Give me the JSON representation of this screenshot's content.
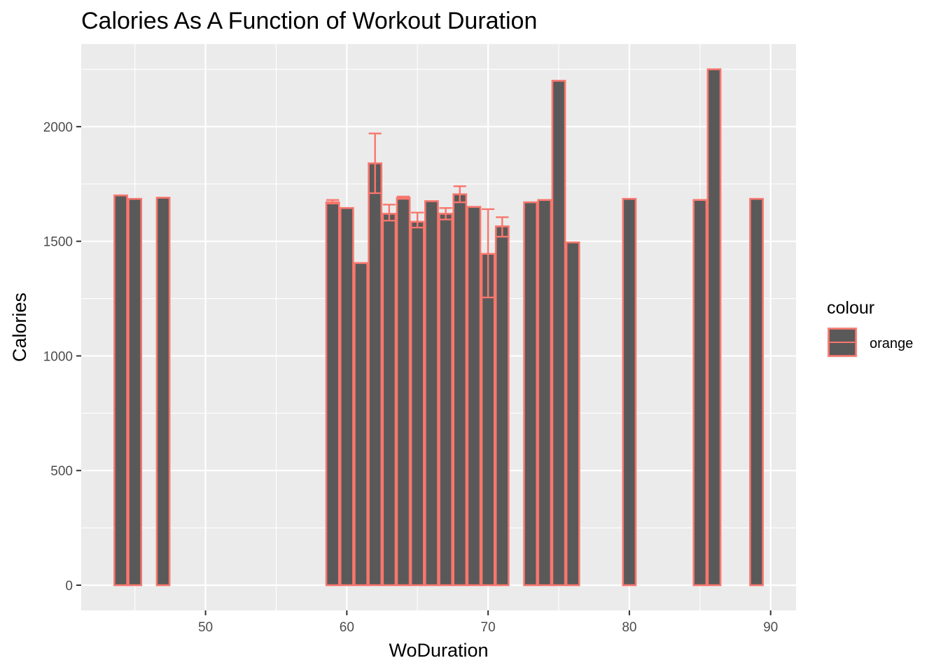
{
  "chart_data": {
    "type": "bar",
    "title": "Calories As A Function of Workout Duration",
    "xlabel": "WoDuration",
    "ylabel": "Calories",
    "xlim": [
      41.2,
      91.8
    ],
    "ylim": [
      -110,
      2360
    ],
    "x_ticks": [
      50,
      60,
      70,
      80,
      90
    ],
    "y_ticks": [
      0,
      500,
      1000,
      1500,
      2000
    ],
    "grid": true,
    "bar_width": 0.9,
    "colors": {
      "panel": "#ebebeb",
      "grid": "#ffffff",
      "bar_fill": "#595959",
      "bar_outline": "#f8766d",
      "tick_label": "#4d4d4d"
    },
    "bars": [
      {
        "x": 44,
        "y": 1700
      },
      {
        "x": 45,
        "y": 1685
      },
      {
        "x": 47,
        "y": 1690
      },
      {
        "x": 59,
        "y": 1670,
        "err": [
          1665,
          1680
        ]
      },
      {
        "x": 60,
        "y": 1645
      },
      {
        "x": 61,
        "y": 1405
      },
      {
        "x": 62,
        "y": 1840,
        "err": [
          1710,
          1970
        ]
      },
      {
        "x": 63,
        "y": 1620,
        "err": [
          1590,
          1660
        ]
      },
      {
        "x": 64,
        "y": 1690,
        "err": [
          1685,
          1695
        ]
      },
      {
        "x": 65,
        "y": 1585,
        "err": [
          1560,
          1625
        ]
      },
      {
        "x": 66,
        "y": 1675
      },
      {
        "x": 67,
        "y": 1620,
        "err": [
          1595,
          1645
        ]
      },
      {
        "x": 68,
        "y": 1705,
        "err": [
          1670,
          1740
        ]
      },
      {
        "x": 69,
        "y": 1650
      },
      {
        "x": 70,
        "y": 1445,
        "err": [
          1255,
          1640
        ]
      },
      {
        "x": 71,
        "y": 1565,
        "err": [
          1520,
          1605
        ]
      },
      {
        "x": 73,
        "y": 1670
      },
      {
        "x": 74,
        "y": 1680
      },
      {
        "x": 75,
        "y": 2200
      },
      {
        "x": 76,
        "y": 1495
      },
      {
        "x": 80,
        "y": 1685
      },
      {
        "x": 85,
        "y": 1680
      },
      {
        "x": 86,
        "y": 2250
      },
      {
        "x": 89,
        "y": 1685
      }
    ],
    "legend": {
      "title": "colour",
      "items": [
        "orange"
      ],
      "position": "right"
    }
  }
}
